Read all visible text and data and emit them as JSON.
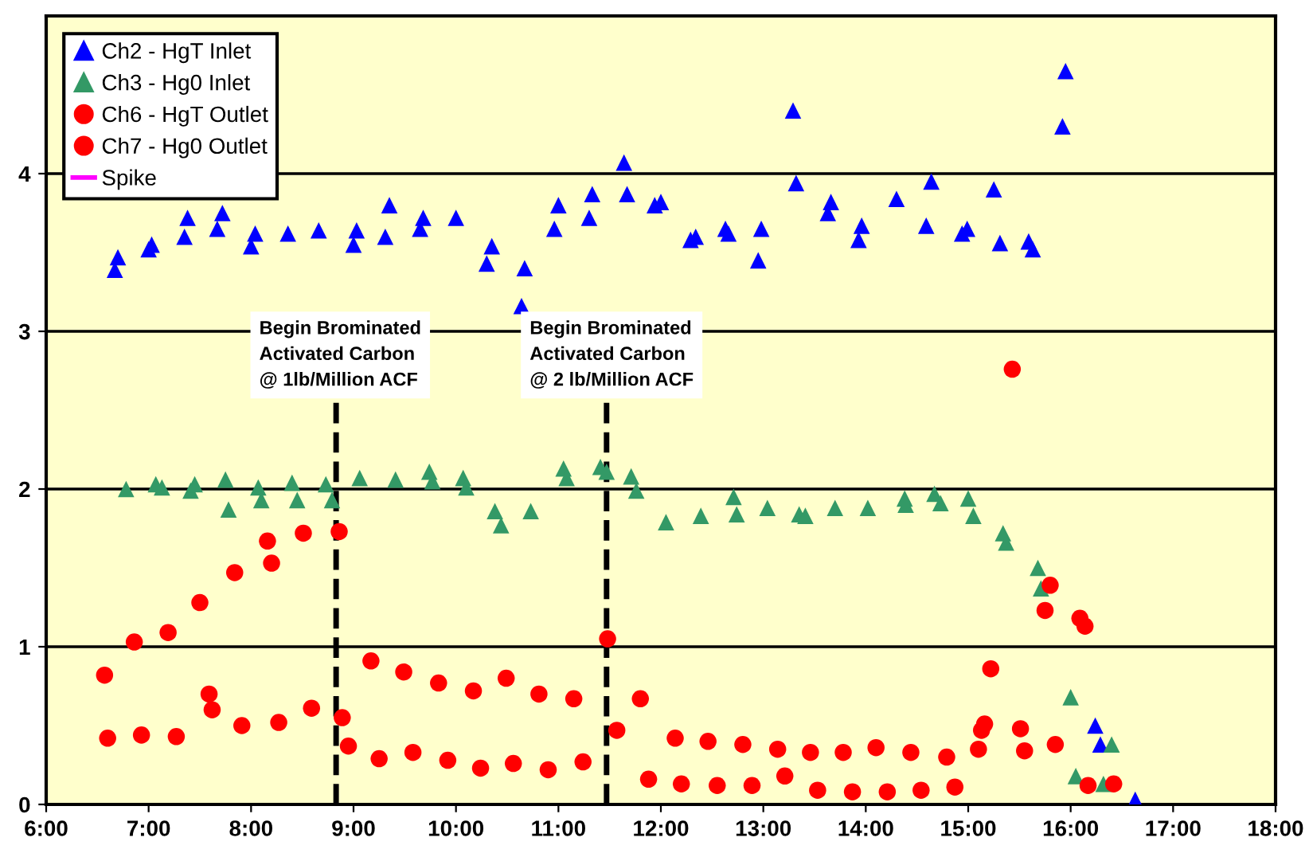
{
  "chart_data": {
    "type": "scatter",
    "xlim": [
      6,
      18
    ],
    "ylim": [
      0,
      5
    ],
    "xticks": [
      {
        "value": 6,
        "label": "6:00"
      },
      {
        "value": 7,
        "label": "7:00"
      },
      {
        "value": 8,
        "label": "8:00"
      },
      {
        "value": 9,
        "label": "9:00"
      },
      {
        "value": 10,
        "label": "10:00"
      },
      {
        "value": 11,
        "label": "11:00"
      },
      {
        "value": 12,
        "label": "12:00"
      },
      {
        "value": 13,
        "label": "13:00"
      },
      {
        "value": 14,
        "label": "14:00"
      },
      {
        "value": 15,
        "label": "15:00"
      },
      {
        "value": 16,
        "label": "16:00"
      },
      {
        "value": 17,
        "label": "17:00"
      },
      {
        "value": 18,
        "label": "18:00"
      }
    ],
    "yticks": [
      0,
      1,
      2,
      3,
      4
    ],
    "grid": "y",
    "legend": "top left",
    "series": [
      {
        "name": "Ch2 - HgT Inlet",
        "color": "#0000ff",
        "marker": "triangle",
        "x": [
          6.67,
          6.7,
          7.0,
          7.03,
          7.35,
          7.38,
          7.67,
          7.72,
          8.0,
          8.04,
          8.36,
          8.66,
          9.0,
          9.03,
          9.31,
          9.35,
          9.65,
          9.68,
          10.0,
          10.3,
          10.35,
          10.64,
          10.67,
          10.96,
          11.0,
          11.3,
          11.33,
          11.64,
          11.67,
          11.94,
          12.0,
          12.29,
          12.34,
          12.63,
          12.66,
          12.95,
          12.98,
          13.29,
          13.32,
          13.63,
          13.66,
          13.93,
          13.96,
          14.3,
          14.59,
          14.64,
          14.94,
          14.99,
          15.25,
          15.31,
          15.59,
          15.63,
          15.92,
          15.95,
          16.24,
          16.29,
          16.63
        ],
        "values": [
          3.39,
          3.47,
          3.52,
          3.55,
          3.6,
          3.72,
          3.65,
          3.75,
          3.54,
          3.62,
          3.62,
          3.64,
          3.55,
          3.64,
          3.6,
          3.8,
          3.65,
          3.72,
          3.72,
          3.43,
          3.54,
          3.16,
          3.4,
          3.65,
          3.8,
          3.72,
          3.87,
          4.07,
          3.87,
          3.8,
          3.82,
          3.58,
          3.6,
          3.65,
          3.62,
          3.45,
          3.65,
          4.4,
          3.94,
          3.75,
          3.82,
          3.58,
          3.67,
          3.84,
          3.67,
          3.95,
          3.62,
          3.65,
          3.9,
          3.56,
          3.57,
          3.52,
          4.3,
          4.65,
          0.5,
          0.38,
          0.03
        ]
      },
      {
        "name": "Ch3 - Hg0 Inlet",
        "color": "#339966",
        "marker": "triangle",
        "x": [
          6.78,
          7.07,
          7.13,
          7.41,
          7.45,
          7.75,
          7.78,
          8.07,
          8.1,
          8.4,
          8.45,
          8.73,
          8.79,
          9.06,
          9.41,
          9.74,
          9.77,
          10.07,
          10.1,
          10.38,
          10.44,
          10.73,
          11.05,
          11.08,
          11.41,
          11.47,
          11.71,
          11.76,
          12.05,
          12.39,
          12.71,
          12.74,
          13.04,
          13.35,
          13.41,
          13.7,
          14.02,
          14.38,
          14.39,
          14.67,
          14.73,
          15.0,
          15.05,
          15.34,
          15.37,
          15.68,
          15.71,
          16.0,
          16.05,
          16.32,
          16.4
        ],
        "values": [
          2.0,
          2.03,
          2.01,
          1.99,
          2.03,
          2.06,
          1.87,
          2.01,
          1.93,
          2.04,
          1.93,
          2.03,
          1.93,
          2.07,
          2.06,
          2.11,
          2.05,
          2.07,
          2.01,
          1.86,
          1.77,
          1.86,
          2.13,
          2.07,
          2.14,
          2.11,
          2.08,
          1.99,
          1.79,
          1.83,
          1.95,
          1.84,
          1.88,
          1.84,
          1.83,
          1.88,
          1.88,
          1.94,
          1.9,
          1.97,
          1.91,
          1.94,
          1.83,
          1.72,
          1.66,
          1.5,
          1.37,
          0.68,
          0.18,
          0.13,
          0.38
        ]
      },
      {
        "name": "Ch6 - HgT Outlet",
        "color": "#ff0000",
        "marker": "circle",
        "x": [
          6.57,
          6.86,
          7.19,
          7.5,
          7.84,
          8.16,
          8.2,
          8.51,
          8.86,
          9.17,
          9.49,
          9.83,
          10.17,
          10.49,
          10.81,
          11.15,
          11.48,
          11.57,
          11.8,
          12.14,
          12.46,
          12.8,
          13.14,
          13.46,
          13.78,
          14.1,
          14.44,
          14.79,
          15.13,
          15.16,
          15.22,
          15.43,
          15.51,
          15.75,
          15.8,
          16.09,
          16.14,
          16.42
        ],
        "values": [
          0.82,
          1.03,
          1.09,
          1.28,
          1.47,
          1.67,
          1.53,
          1.72,
          1.73,
          0.91,
          0.84,
          0.77,
          0.72,
          0.8,
          0.7,
          0.67,
          1.05,
          0.47,
          0.67,
          0.42,
          0.4,
          0.38,
          0.35,
          0.33,
          0.33,
          0.36,
          0.33,
          0.3,
          0.47,
          0.51,
          0.86,
          2.76,
          0.48,
          1.23,
          1.39,
          1.18,
          1.13,
          0.13
        ]
      },
      {
        "name": "Ch7 - Hg0 Outlet",
        "color": "#ff0000",
        "marker": "circle",
        "x": [
          6.6,
          6.93,
          7.27,
          7.59,
          7.62,
          7.91,
          8.27,
          8.59,
          8.89,
          8.95,
          9.25,
          9.58,
          9.92,
          10.24,
          10.56,
          10.9,
          11.24,
          11.88,
          12.2,
          12.55,
          12.89,
          13.21,
          13.53,
          13.87,
          14.21,
          14.54,
          14.87,
          15.1,
          15.55,
          15.85,
          16.17
        ],
        "values": [
          0.42,
          0.44,
          0.43,
          0.7,
          0.6,
          0.5,
          0.52,
          0.61,
          0.55,
          0.37,
          0.29,
          0.33,
          0.28,
          0.23,
          0.26,
          0.22,
          0.27,
          0.16,
          0.13,
          0.12,
          0.12,
          0.18,
          0.09,
          0.08,
          0.08,
          0.09,
          0.11,
          0.35,
          0.34,
          0.38,
          0.12
        ]
      },
      {
        "name": "Spike",
        "color": "#ff00ff",
        "marker": "none",
        "line_style": "solid"
      }
    ],
    "ref_lines": [
      {
        "axis": "x",
        "value": 8.83,
        "label": "Begin Brominated\nActivated Carbon\n@ 1lb/Million ACF",
        "color": "#000000",
        "line_style": "dashed"
      },
      {
        "axis": "x",
        "value": 11.47,
        "label": "Begin Brominated\nActivated Carbon\n@ 2 lb/Million ACF",
        "color": "#000000",
        "line_style": "dashed"
      }
    ]
  }
}
